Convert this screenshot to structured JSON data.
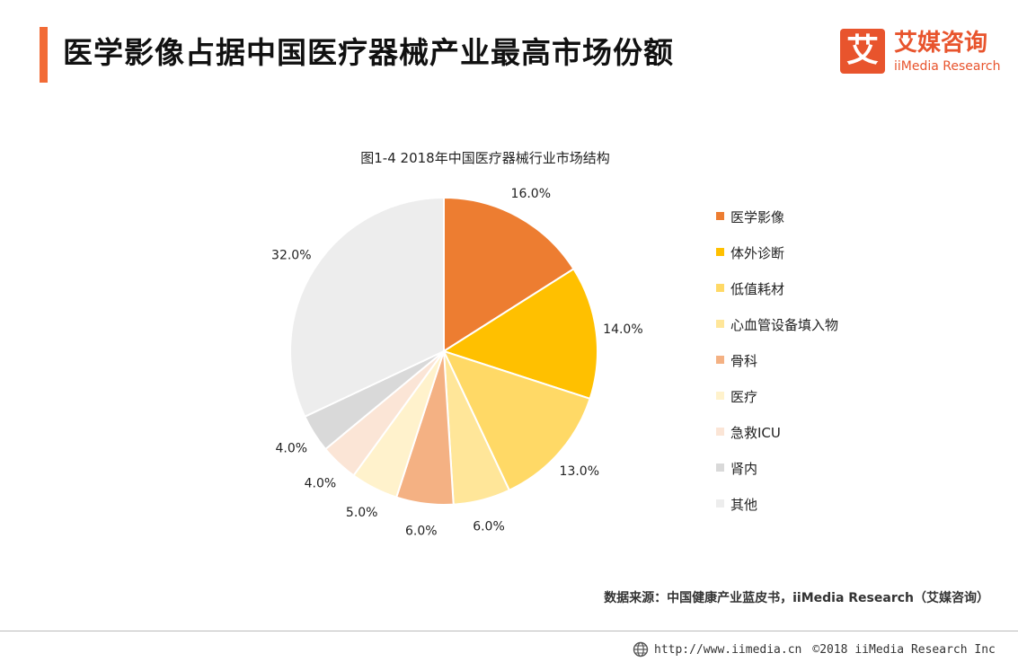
{
  "header": {
    "title": "医学影像占据中国医疗器械产业最高市场份额",
    "accent_color": "#F26B36"
  },
  "logo": {
    "glyph": "艾",
    "name_cn": "艾媒咨询",
    "name_en": "iiMedia Research",
    "color": "#E8542D"
  },
  "chart_data": {
    "type": "pie",
    "title": "图1-4 2018年中国医疗器械行业市场结构",
    "unit": "%",
    "legend_position": "right",
    "categories": [
      "医学影像",
      "体外诊断",
      "低值耗材",
      "心血管设备填入物",
      "骨科",
      "医疗",
      "急救ICU",
      "肾内",
      "其他"
    ],
    "values": [
      16.0,
      14.0,
      13.0,
      6.0,
      6.0,
      5.0,
      4.0,
      4.0,
      32.0
    ],
    "labels": [
      "16.0%",
      "14.0%",
      "13.0%",
      "6.0%",
      "6.0%",
      "5.0%",
      "4.0%",
      "4.0%",
      "32.0%"
    ],
    "colors": [
      "#ED7D31",
      "#FFC000",
      "#FFD966",
      "#FFE699",
      "#F4B183",
      "#FFF2CC",
      "#FBE5D6",
      "#D9D9D9",
      "#EDEDED"
    ]
  },
  "source": "数据来源：中国健康产业蓝皮书，iiMedia Research（艾媒咨询）",
  "footer": {
    "icon": "globe-icon",
    "url": "http://www.iimedia.cn",
    "copyright": "©2018  iiMedia Research  Inc"
  }
}
